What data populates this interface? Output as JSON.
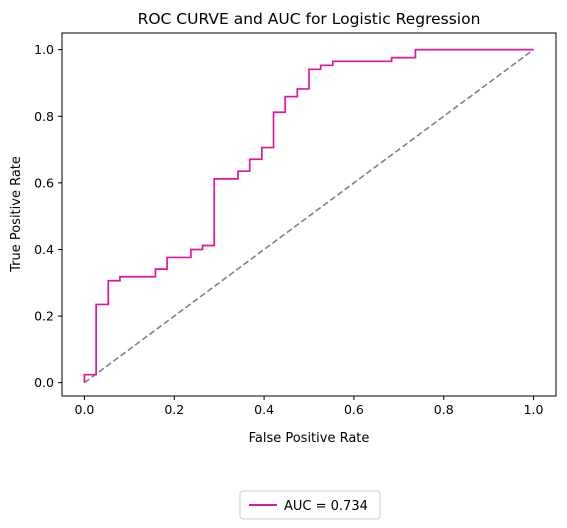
{
  "chart_data": {
    "type": "line",
    "title": "ROC CURVE and AUC for Logistic Regression",
    "xlabel": "False Positive Rate",
    "ylabel": "True Positive Rate",
    "xlim": [
      -0.05,
      1.05
    ],
    "ylim": [
      -0.04,
      1.05
    ],
    "xticks": [
      0.0,
      0.2,
      0.4,
      0.6,
      0.8,
      1.0
    ],
    "yticks": [
      0.0,
      0.2,
      0.4,
      0.6,
      0.8,
      1.0
    ],
    "xtick_labels": [
      "0.0",
      "0.2",
      "0.4",
      "0.6",
      "0.8",
      "1.0"
    ],
    "ytick_labels": [
      "0.0",
      "0.2",
      "0.4",
      "0.6",
      "0.8",
      "1.0"
    ],
    "grid": false,
    "legend_position": "below-center",
    "series": [
      {
        "name": "AUC = 0.734",
        "color": "#e0169c",
        "style": "solid",
        "x": [
          0.0,
          0.0,
          0.026,
          0.026,
          0.053,
          0.053,
          0.079,
          0.079,
          0.158,
          0.158,
          0.184,
          0.184,
          0.237,
          0.237,
          0.263,
          0.263,
          0.289,
          0.289,
          0.342,
          0.342,
          0.368,
          0.368,
          0.395,
          0.395,
          0.421,
          0.421,
          0.447,
          0.447,
          0.474,
          0.474,
          0.5,
          0.5,
          0.526,
          0.526,
          0.553,
          0.553,
          0.684,
          0.684,
          0.737,
          0.737,
          1.0
        ],
        "y": [
          0.0,
          0.024,
          0.024,
          0.235,
          0.235,
          0.306,
          0.306,
          0.318,
          0.318,
          0.341,
          0.341,
          0.376,
          0.376,
          0.4,
          0.4,
          0.412,
          0.412,
          0.612,
          0.612,
          0.635,
          0.635,
          0.671,
          0.671,
          0.706,
          0.706,
          0.812,
          0.812,
          0.859,
          0.859,
          0.882,
          0.882,
          0.941,
          0.941,
          0.953,
          0.953,
          0.965,
          0.965,
          0.976,
          0.976,
          1.0,
          1.0
        ]
      },
      {
        "name": "",
        "color": "#808080",
        "style": "dashed",
        "x": [
          0.0,
          1.0
        ],
        "y": [
          0.0,
          1.0
        ]
      }
    ]
  }
}
